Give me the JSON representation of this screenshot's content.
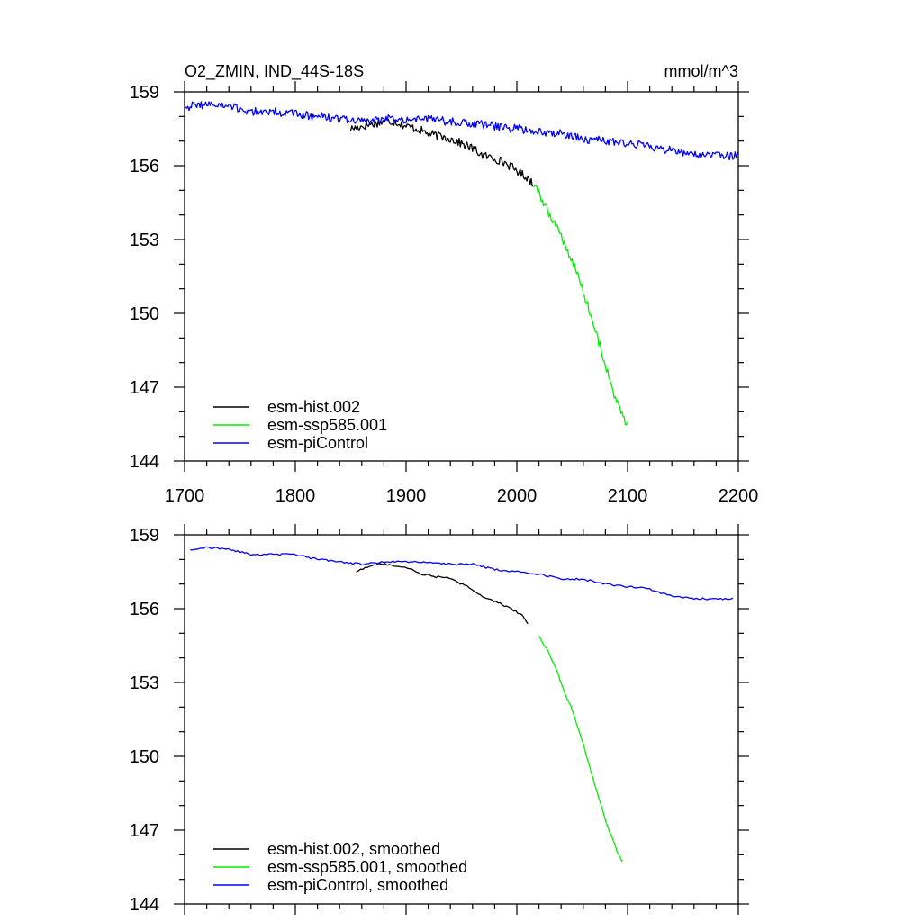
{
  "chart_data": [
    {
      "type": "line",
      "title_left": "O2_ZMIN, IND_44S-18S",
      "title_right": "mmol/m^3",
      "xlim": [
        1700,
        2200
      ],
      "ylim": [
        144,
        159
      ],
      "xticks": [
        "1700",
        "1800",
        "1900",
        "2000",
        "2100",
        "2200"
      ],
      "yticks": [
        "144",
        "147",
        "150",
        "153",
        "156",
        "159"
      ],
      "grid": false,
      "legend_position": "bottom-left",
      "series": [
        {
          "name": "esm-hist.002",
          "color": "#000000",
          "x": [
            1850,
            1860,
            1870,
            1880,
            1890,
            1900,
            1910,
            1920,
            1930,
            1940,
            1950,
            1960,
            1970,
            1980,
            1990,
            2000,
            2010,
            2014
          ],
          "y": [
            157.5,
            157.6,
            157.7,
            157.8,
            157.8,
            157.6,
            157.5,
            157.3,
            157.2,
            157.1,
            156.9,
            156.7,
            156.4,
            156.3,
            156.1,
            155.8,
            155.5,
            155.3
          ]
        },
        {
          "name": "esm-ssp585.001",
          "color": "#00ee00",
          "x": [
            2015,
            2020,
            2025,
            2030,
            2035,
            2040,
            2045,
            2050,
            2055,
            2060,
            2065,
            2070,
            2075,
            2080,
            2085,
            2090,
            2095,
            2100
          ],
          "y": [
            155.2,
            154.9,
            154.4,
            154.0,
            153.6,
            153.2,
            152.6,
            152.1,
            151.6,
            150.9,
            150.2,
            149.4,
            148.7,
            147.9,
            147.1,
            146.4,
            145.9,
            145.4
          ]
        },
        {
          "name": "esm-piControl",
          "color": "#0000ff",
          "x": [
            1700,
            1720,
            1740,
            1760,
            1780,
            1800,
            1820,
            1840,
            1860,
            1880,
            1900,
            1920,
            1940,
            1960,
            1980,
            2000,
            2020,
            2040,
            2060,
            2080,
            2100,
            2120,
            2140,
            2160,
            2180,
            2200
          ],
          "y": [
            158.4,
            158.5,
            158.4,
            158.2,
            158.2,
            158.1,
            158.0,
            157.9,
            157.8,
            157.9,
            157.9,
            157.9,
            157.8,
            157.7,
            157.6,
            157.5,
            157.4,
            157.3,
            157.1,
            157.0,
            156.9,
            156.8,
            156.6,
            156.5,
            156.4,
            156.4
          ]
        }
      ]
    },
    {
      "type": "line",
      "xlim": [
        1700,
        2200
      ],
      "ylim": [
        144,
        159
      ],
      "yticks": [
        "144",
        "147",
        "150",
        "153",
        "156",
        "159"
      ],
      "grid": false,
      "legend_position": "bottom-left",
      "series": [
        {
          "name": "esm-hist.002, smoothed",
          "color": "#000000",
          "x": [
            1855,
            1865,
            1875,
            1885,
            1895,
            1905,
            1915,
            1925,
            1935,
            1945,
            1955,
            1965,
            1975,
            1985,
            1995,
            2005,
            2010
          ],
          "y": [
            157.5,
            157.7,
            157.8,
            157.8,
            157.7,
            157.6,
            157.4,
            157.3,
            157.3,
            157.1,
            156.9,
            156.6,
            156.4,
            156.2,
            156.0,
            155.7,
            155.4
          ]
        },
        {
          "name": "esm-ssp585.001, smoothed",
          "color": "#00ee00",
          "x": [
            2020,
            2025,
            2030,
            2035,
            2040,
            2045,
            2050,
            2055,
            2060,
            2065,
            2070,
            2075,
            2080,
            2085,
            2090,
            2095
          ],
          "y": [
            154.9,
            154.5,
            154.1,
            153.6,
            153.0,
            152.4,
            151.9,
            151.2,
            150.5,
            149.7,
            148.9,
            148.2,
            147.4,
            146.8,
            146.2,
            145.7
          ]
        },
        {
          "name": "esm-piControl, smoothed",
          "color": "#0000ff",
          "x": [
            1705,
            1720,
            1740,
            1760,
            1780,
            1800,
            1820,
            1840,
            1860,
            1880,
            1900,
            1920,
            1940,
            1960,
            1980,
            2000,
            2020,
            2040,
            2060,
            2080,
            2100,
            2120,
            2140,
            2160,
            2180,
            2195
          ],
          "y": [
            158.4,
            158.5,
            158.4,
            158.2,
            158.2,
            158.2,
            158.0,
            157.9,
            157.8,
            157.9,
            157.9,
            157.9,
            157.8,
            157.8,
            157.6,
            157.5,
            157.4,
            157.2,
            157.2,
            157.0,
            156.9,
            156.8,
            156.5,
            156.4,
            156.4,
            156.4
          ]
        }
      ]
    }
  ]
}
